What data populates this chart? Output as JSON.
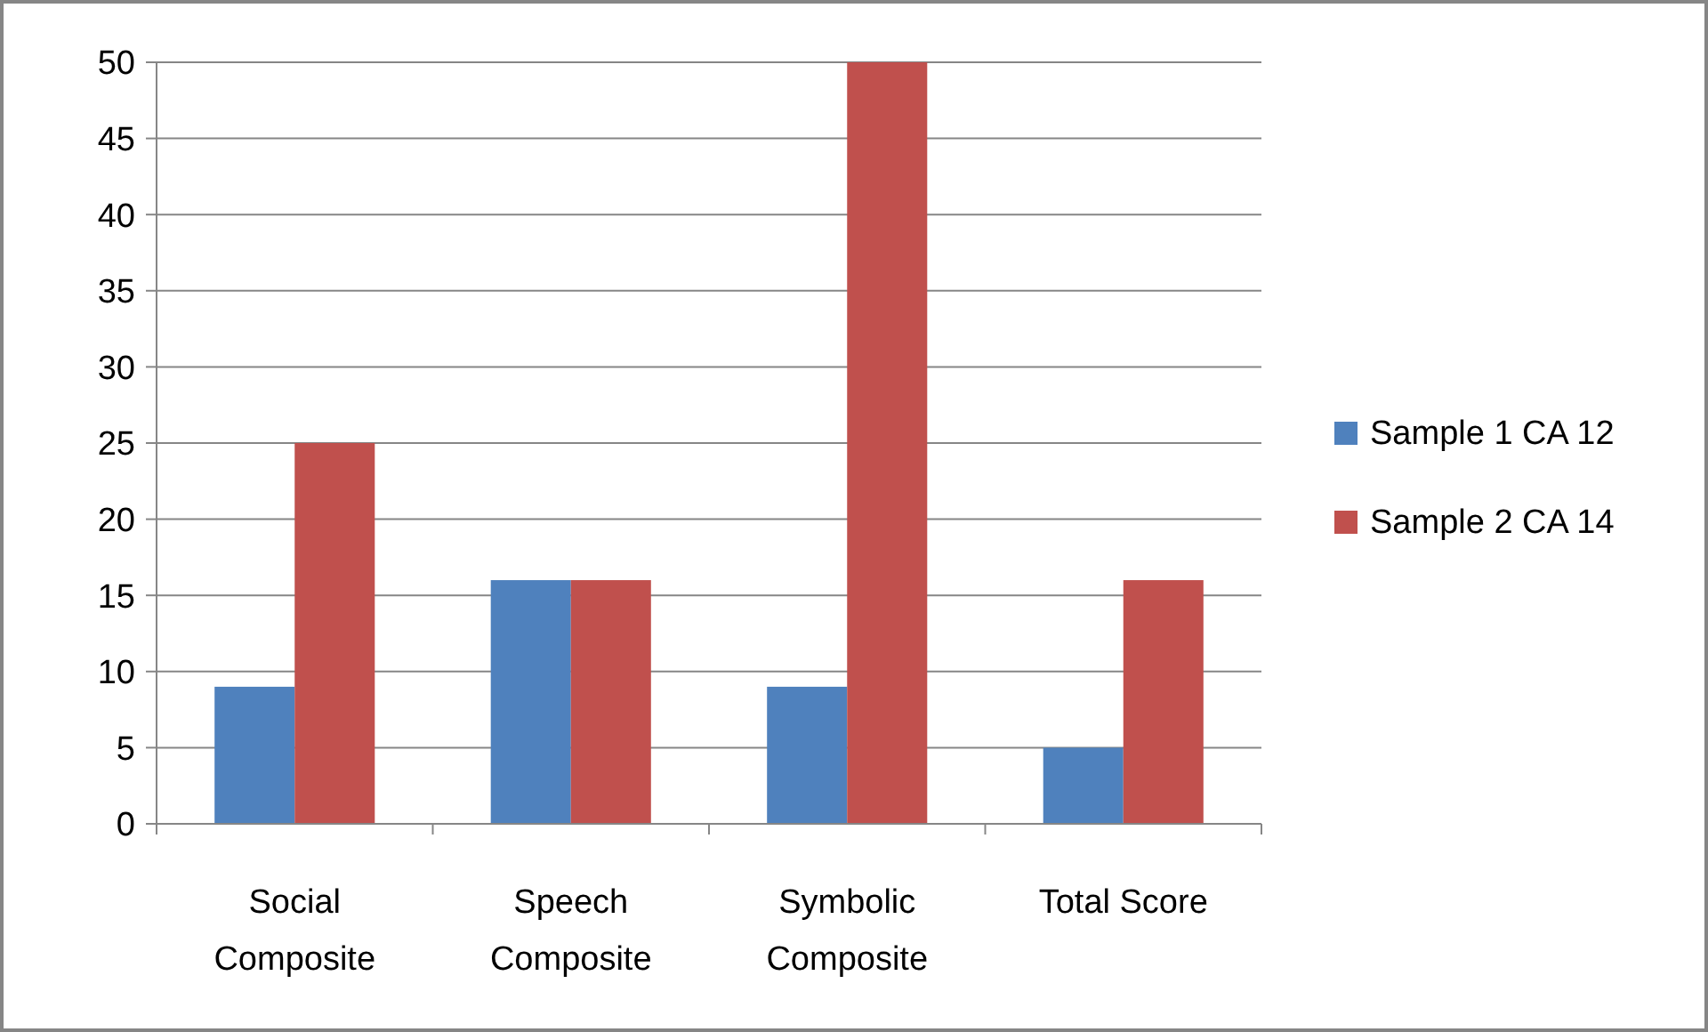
{
  "chart_data": {
    "type": "bar",
    "categories": [
      "Social Composite",
      "Speech Composite",
      "Symbolic Composite",
      "Total Score"
    ],
    "series": [
      {
        "name": "Sample 1 CA 12",
        "color": "#4f81bd",
        "values": [
          9,
          16,
          9,
          5
        ]
      },
      {
        "name": "Sample 2 CA 14",
        "color": "#c0504d",
        "values": [
          25,
          16,
          50,
          16
        ]
      }
    ],
    "ylim": [
      0,
      50
    ],
    "yticks": [
      0,
      5,
      10,
      15,
      20,
      25,
      30,
      35,
      40,
      45,
      50
    ],
    "grid": "y",
    "legend": "right"
  }
}
